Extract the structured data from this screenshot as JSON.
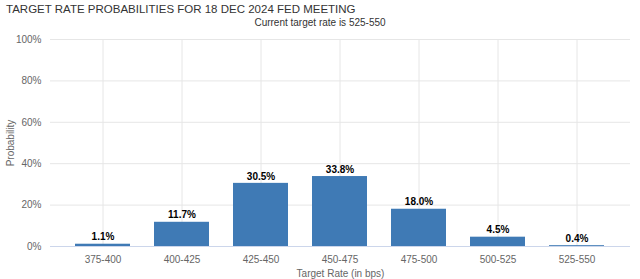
{
  "chart_data": {
    "type": "bar",
    "title": "TARGET RATE PROBABILITIES FOR 18 DEC 2024 FED MEETING",
    "subtitle": "Current target rate is 525-550",
    "x_label": "Target Rate (in bps)",
    "y_label": "Probability",
    "categories": [
      "375-400",
      "400-425",
      "425-450",
      "450-475",
      "475-500",
      "500-525",
      "525-550"
    ],
    "values": [
      1.1,
      11.7,
      30.5,
      33.8,
      18.0,
      4.5,
      0.4
    ],
    "value_labels": [
      "1.1%",
      "11.7%",
      "30.5%",
      "33.8%",
      "18.0%",
      "4.5%",
      "0.4%"
    ],
    "color": "#3f7ab5",
    "ylim": [
      0,
      100
    ],
    "yticks": [
      {
        "value": 0,
        "label": "0%"
      },
      {
        "value": 20,
        "label": "20%"
      },
      {
        "value": 40,
        "label": "40%"
      },
      {
        "value": 60,
        "label": "60%"
      },
      {
        "value": 80,
        "label": "80%"
      },
      {
        "value": 100,
        "label": "100%"
      }
    ],
    "grid": true,
    "data_labels": true
  }
}
